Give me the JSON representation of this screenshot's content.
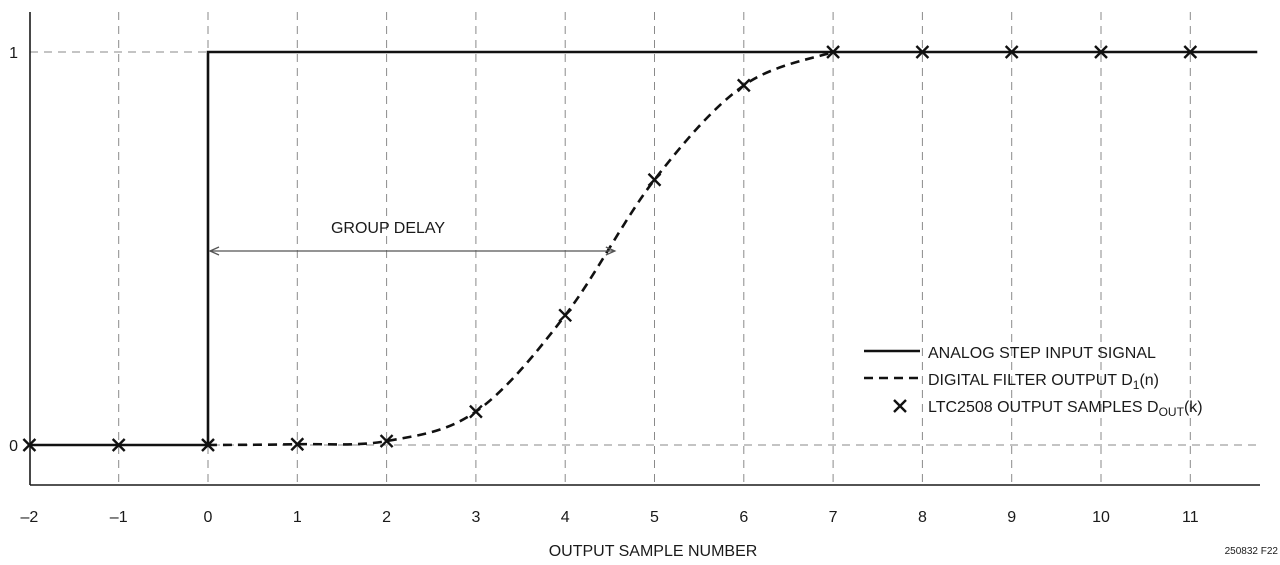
{
  "chart_data": {
    "type": "line",
    "xlabel": "OUTPUT SAMPLE NUMBER",
    "ylabel": "",
    "xlim": [
      -2,
      11.75
    ],
    "ylim": [
      -0.1,
      1.1
    ],
    "x_ticks": [
      -2,
      -1,
      0,
      1,
      2,
      3,
      4,
      5,
      6,
      7,
      8,
      9,
      10,
      11
    ],
    "x_tick_labels": [
      "–2",
      "–1",
      "0",
      "1",
      "2",
      "3",
      "4",
      "5",
      "6",
      "7",
      "8",
      "9",
      "10",
      "11"
    ],
    "y_ticks": [
      0,
      1
    ],
    "y_tick_labels": [
      "0",
      "1"
    ],
    "grid": {
      "vertical": true,
      "horizontal_at": [
        0,
        1
      ]
    },
    "legend_position": "bottom-right",
    "series": [
      {
        "name": "ANALOG STEP INPUT SIGNAL",
        "style": "solid",
        "x": [
          -2,
          0,
          0,
          11.75
        ],
        "y": [
          0,
          0,
          1,
          1
        ]
      },
      {
        "name": "DIGITAL FILTER OUTPUT D1(n)",
        "name_parts": {
          "text": "DIGITAL FILTER OUTPUT D",
          "sub": "1",
          "suffix": "(n)"
        },
        "style": "dashed",
        "x": [
          0,
          1,
          2,
          3,
          4,
          5,
          6,
          7
        ],
        "y": [
          0,
          0.002,
          0.01,
          0.085,
          0.33,
          0.675,
          0.915,
          1.0
        ]
      },
      {
        "name": "LTC2508 OUTPUT SAMPLES DOUT(k)",
        "name_parts": {
          "text": "LTC2508 OUTPUT SAMPLES D",
          "sub": "OUT",
          "suffix": "(k)"
        },
        "style": "markers-x",
        "x": [
          -2,
          -1,
          0,
          1,
          2,
          3,
          4,
          5,
          6,
          7,
          8,
          9,
          10,
          11
        ],
        "y": [
          0,
          0,
          0,
          0.002,
          0.01,
          0.085,
          0.33,
          0.675,
          0.915,
          1.0,
          1.0,
          1.0,
          1.0,
          1.0
        ]
      }
    ],
    "annotations": [
      {
        "text": "GROUP DELAY",
        "x_start": 0,
        "x_end": 4.5,
        "y": 0.5
      }
    ],
    "figure_id": "250832 F22"
  }
}
